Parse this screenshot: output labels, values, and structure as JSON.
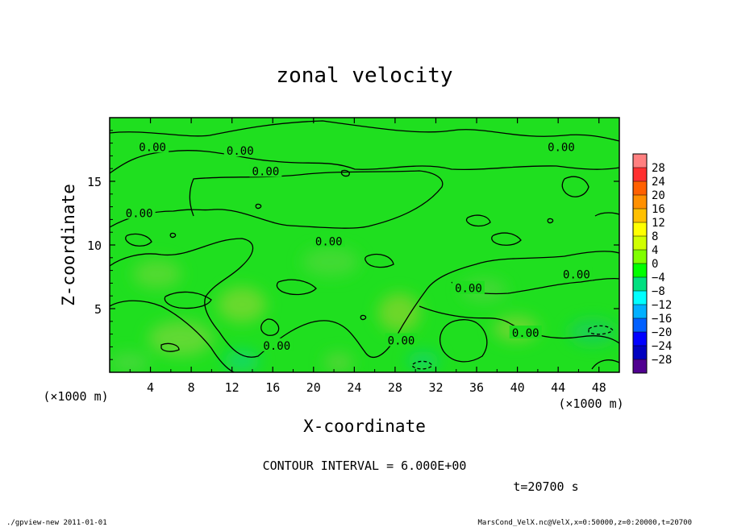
{
  "chart_data": {
    "type": "heatmap",
    "title": "zonal velocity",
    "xlabel": "X-coordinate",
    "ylabel": "Z-coordinate",
    "x_unit": "(×1000 m)",
    "y_unit": "(×1000 m)",
    "xlim": [
      0,
      50
    ],
    "ylim": [
      0,
      20
    ],
    "x_ticks": [
      4,
      8,
      12,
      16,
      20,
      24,
      28,
      32,
      36,
      40,
      44,
      48
    ],
    "y_ticks": [
      5,
      10,
      15
    ],
    "colorbar": {
      "levels": [
        28,
        24,
        20,
        16,
        12,
        8,
        4,
        0,
        -4,
        -8,
        -12,
        -16,
        -20,
        -24,
        -28
      ],
      "colors": [
        "#ff8080",
        "#ff3030",
        "#ff6000",
        "#ff9000",
        "#ffc000",
        "#ffff00",
        "#d0ff00",
        "#80ff00",
        "#00ff00",
        "#00e080",
        "#00ffff",
        "#00b0ff",
        "#0060ff",
        "#0000ff",
        "#0000c0",
        "#500090"
      ]
    },
    "field_color": "#1fdf1f",
    "contour_label": "0.00",
    "contour_label_positions": [
      {
        "x": 4.2,
        "y": 17.7
      },
      {
        "x": 12.8,
        "y": 17.4
      },
      {
        "x": 15.3,
        "y": 15.8
      },
      {
        "x": 44.3,
        "y": 17.7
      },
      {
        "x": 2.9,
        "y": 12.5
      },
      {
        "x": 21.5,
        "y": 10.3
      },
      {
        "x": 35.2,
        "y": 6.6
      },
      {
        "x": 45.8,
        "y": 7.7
      },
      {
        "x": 40.8,
        "y": 3.1
      },
      {
        "x": 16.4,
        "y": 2.1
      },
      {
        "x": 28.6,
        "y": 2.5
      }
    ],
    "contour_interval": "CONTOUR INTERVAL = 6.000E+00",
    "time": "t=20700 s"
  },
  "footer": {
    "left": "./gpview-new  2011-01-01",
    "right": "MarsCond_VelX.nc@VelX,x=0:50000,z=0:20000,t=20700"
  }
}
